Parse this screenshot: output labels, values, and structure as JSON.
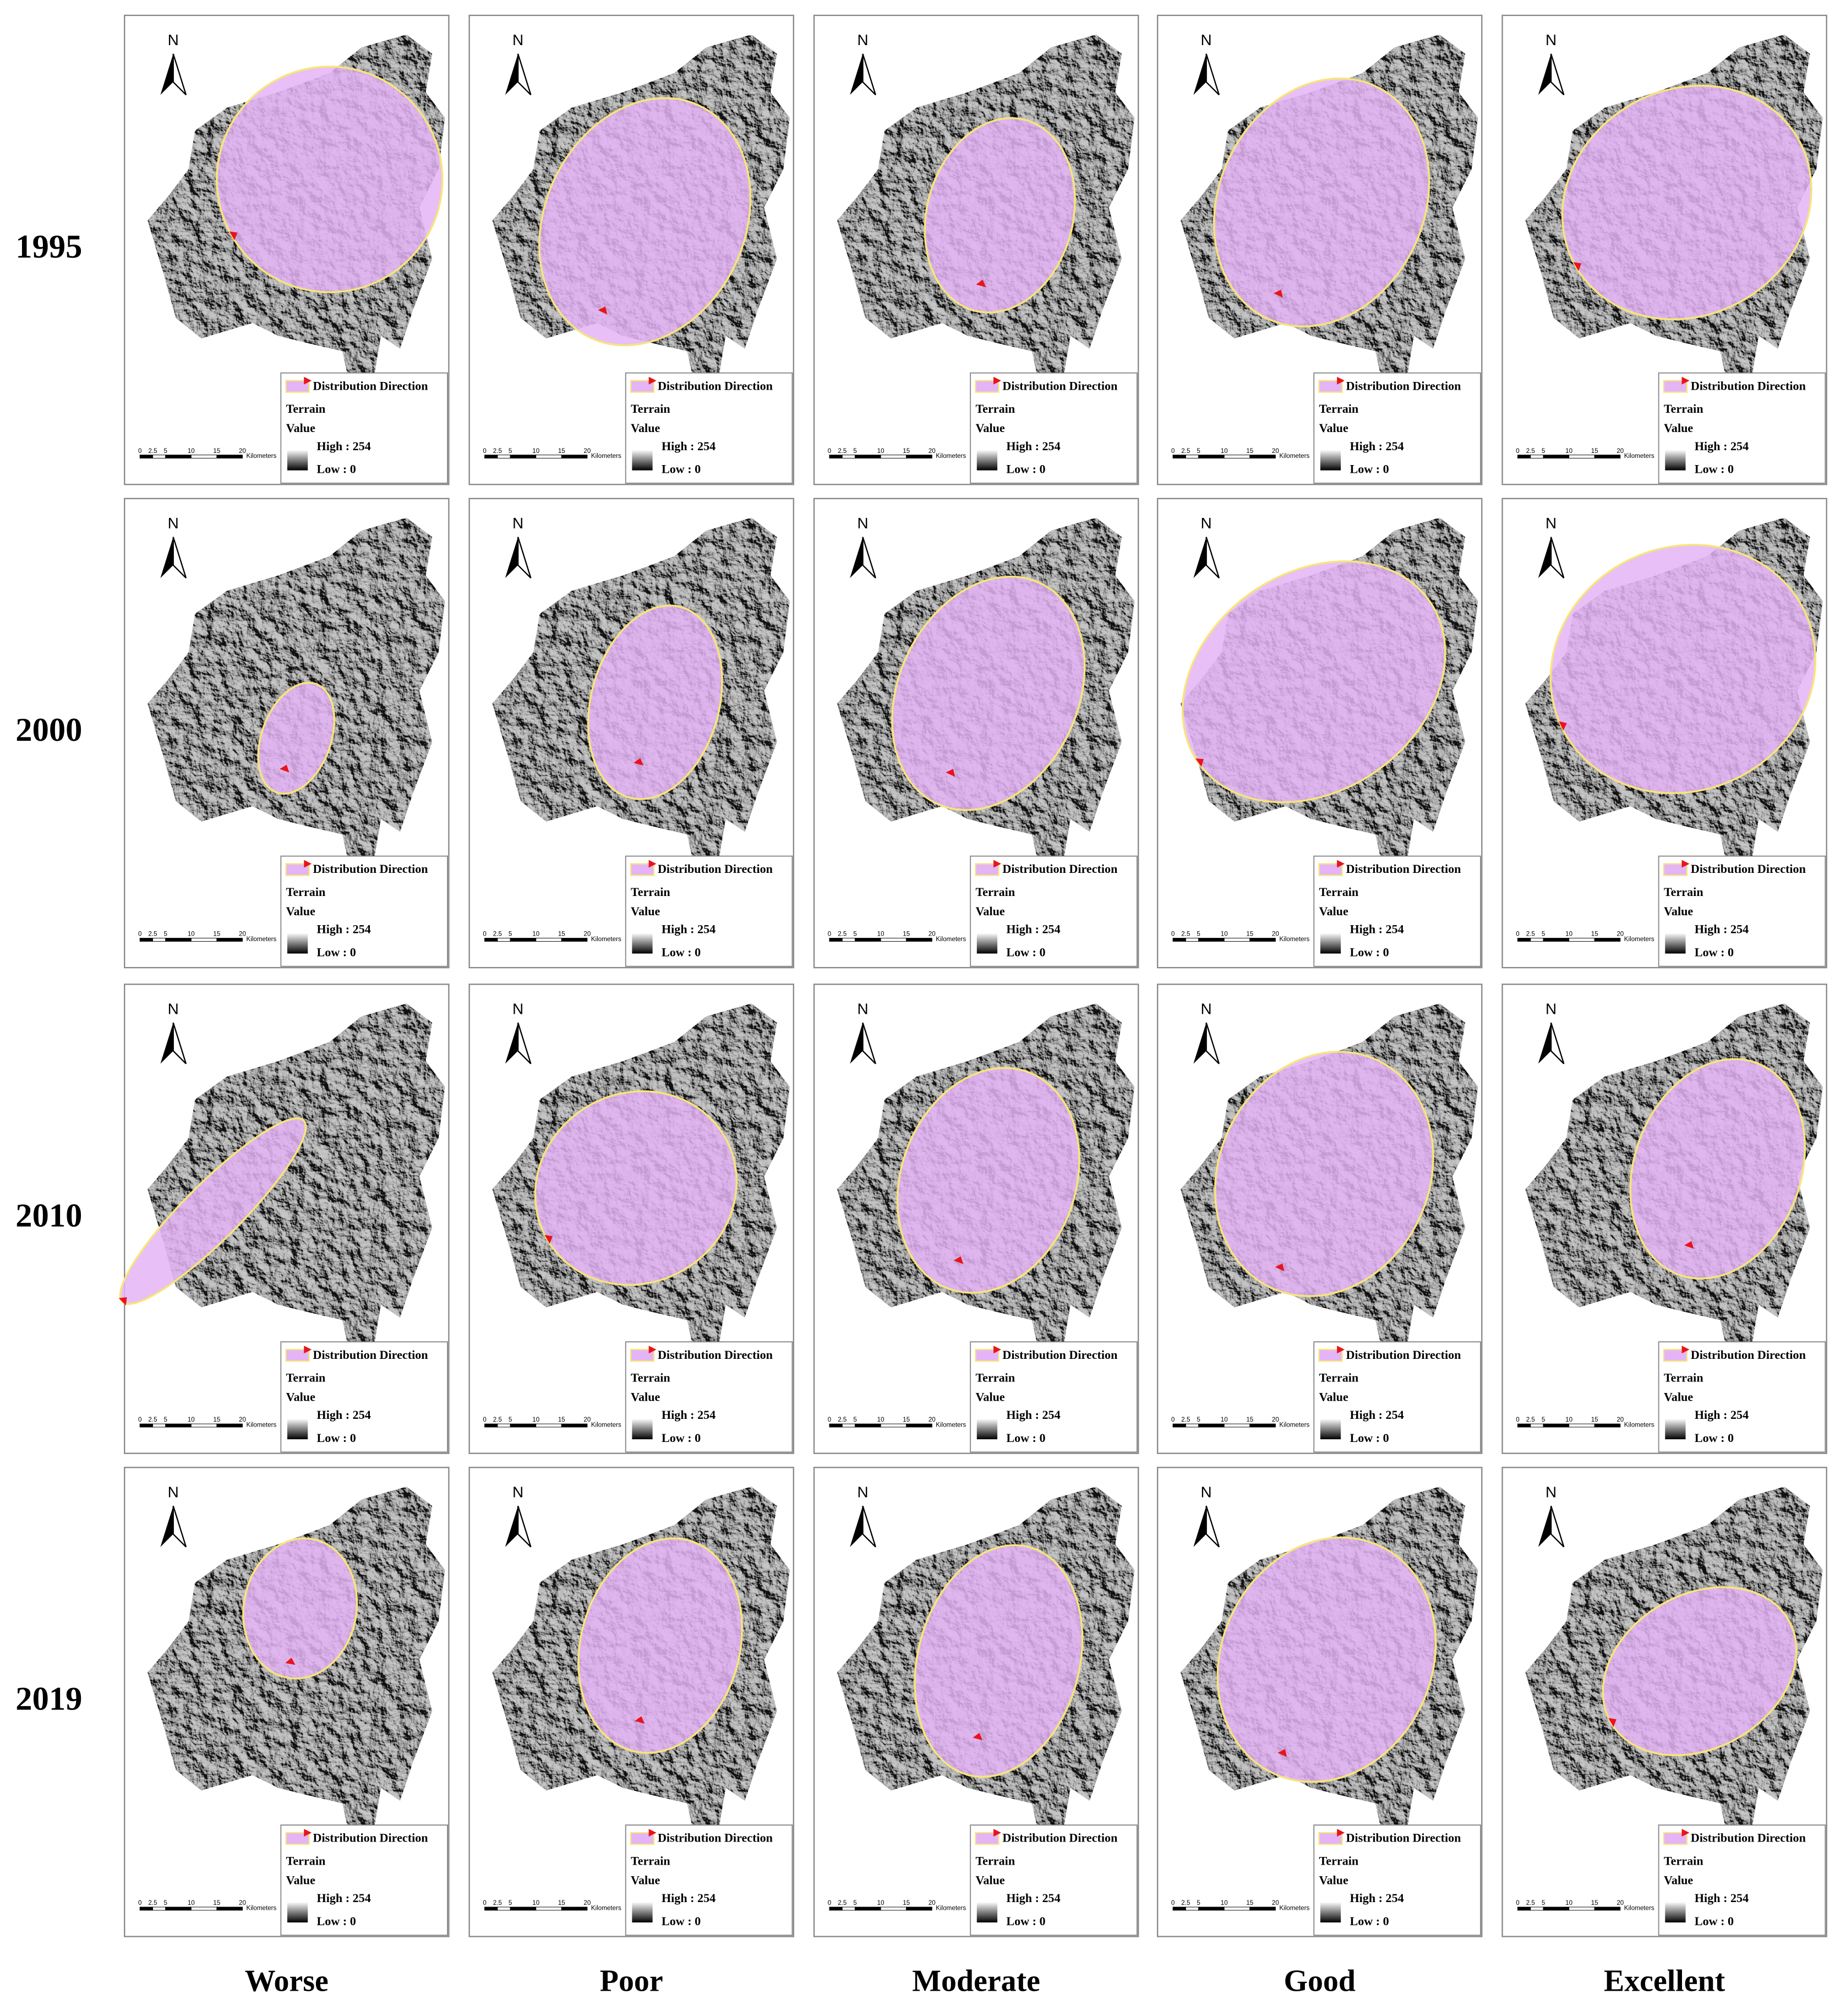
{
  "rows": [
    "1995",
    "2000",
    "2010",
    "2019"
  ],
  "columns": [
    "Worse",
    "Poor",
    "Moderate",
    "Good",
    "Excellent"
  ],
  "panel": {
    "north": "N",
    "legend": {
      "direction": "Distribution Direction",
      "terrain": "Terrain",
      "value": "Value",
      "high": "High : 254",
      "low": "Low : 0"
    },
    "scale_bar": {
      "ticks": [
        0,
        2.5,
        5,
        10,
        15,
        20
      ],
      "unit": "Kilometers"
    }
  }
}
